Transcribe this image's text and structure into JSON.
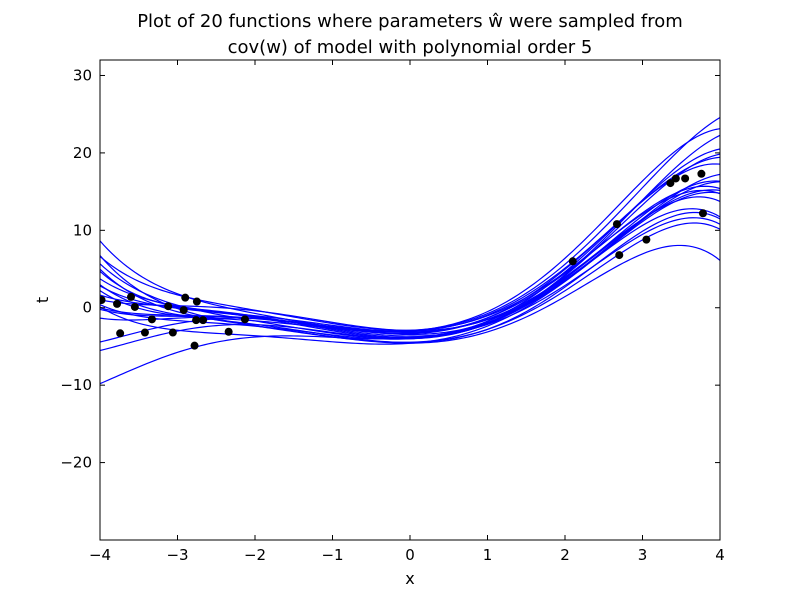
{
  "chart_data": {
    "type": "scatter",
    "title_line1": "Plot of 20 functions where parameters ŵ were sampled from",
    "title_line2": "cov(w) of model with polynomial order 5",
    "xlabel": "x",
    "ylabel": "t",
    "xlim": [
      -4,
      4
    ],
    "ylim": [
      -30,
      32
    ],
    "xticks": [
      -4,
      -3,
      -2,
      -1,
      0,
      1,
      2,
      3,
      4
    ],
    "xtick_labels": [
      "−4",
      "−3",
      "−2",
      "−1",
      "0",
      "1",
      "2",
      "3",
      "4"
    ],
    "yticks": [
      -20,
      -10,
      0,
      10,
      20,
      30
    ],
    "ytick_labels": [
      "−20",
      "−10",
      "0",
      "10",
      "20",
      "30"
    ],
    "grid": false,
    "point_color": "#000000",
    "line_color": "#0000ff",
    "points": [
      {
        "x": -3.98,
        "y": 1.0
      },
      {
        "x": -3.78,
        "y": 0.5
      },
      {
        "x": -3.74,
        "y": -3.3
      },
      {
        "x": -3.6,
        "y": 1.4
      },
      {
        "x": -3.55,
        "y": 0.1
      },
      {
        "x": -3.42,
        "y": -3.2
      },
      {
        "x": -3.33,
        "y": -1.5
      },
      {
        "x": -3.12,
        "y": 0.2
      },
      {
        "x": -3.06,
        "y": -3.2
      },
      {
        "x": -2.92,
        "y": -0.3
      },
      {
        "x": -2.9,
        "y": 1.3
      },
      {
        "x": -2.78,
        "y": -4.9
      },
      {
        "x": -2.76,
        "y": -1.6
      },
      {
        "x": -2.75,
        "y": 0.8
      },
      {
        "x": -2.67,
        "y": -1.6
      },
      {
        "x": -2.34,
        "y": -3.1
      },
      {
        "x": -2.13,
        "y": -1.5
      },
      {
        "x": 2.1,
        "y": 6.0
      },
      {
        "x": 2.67,
        "y": 10.8
      },
      {
        "x": 2.7,
        "y": 6.8
      },
      {
        "x": 3.05,
        "y": 8.8
      },
      {
        "x": 3.36,
        "y": 16.1
      },
      {
        "x": 3.43,
        "y": 16.7
      },
      {
        "x": 3.55,
        "y": 16.7
      },
      {
        "x": 3.76,
        "y": 17.3
      },
      {
        "x": 3.78,
        "y": 12.2
      }
    ],
    "function_series_count": 20
  }
}
